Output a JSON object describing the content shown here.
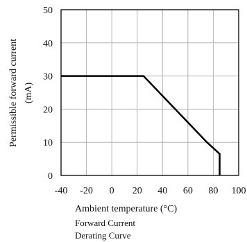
{
  "chart_data": {
    "type": "line",
    "title": "",
    "xlabel": "Ambient temperature (°C)",
    "ylabel": [
      "Permissible forward current",
      "(mA)"
    ],
    "caption": [
      "Forward Current",
      "Derating  Curve"
    ],
    "xlim": [
      -40,
      100
    ],
    "ylim": [
      0,
      50
    ],
    "x_ticks": [
      -40,
      -20,
      0,
      20,
      40,
      60,
      80,
      100
    ],
    "y_ticks": [
      0,
      10,
      20,
      30,
      40,
      50
    ],
    "grid": true,
    "legend": "none",
    "series": [
      {
        "x": [
          -40,
          25,
          75,
          85,
          85
        ],
        "y": [
          30,
          30,
          10,
          6.5,
          0
        ]
      }
    ],
    "colors": {
      "line": "#000000",
      "grid": "#b4b4b4",
      "axes": "#000000"
    }
  }
}
